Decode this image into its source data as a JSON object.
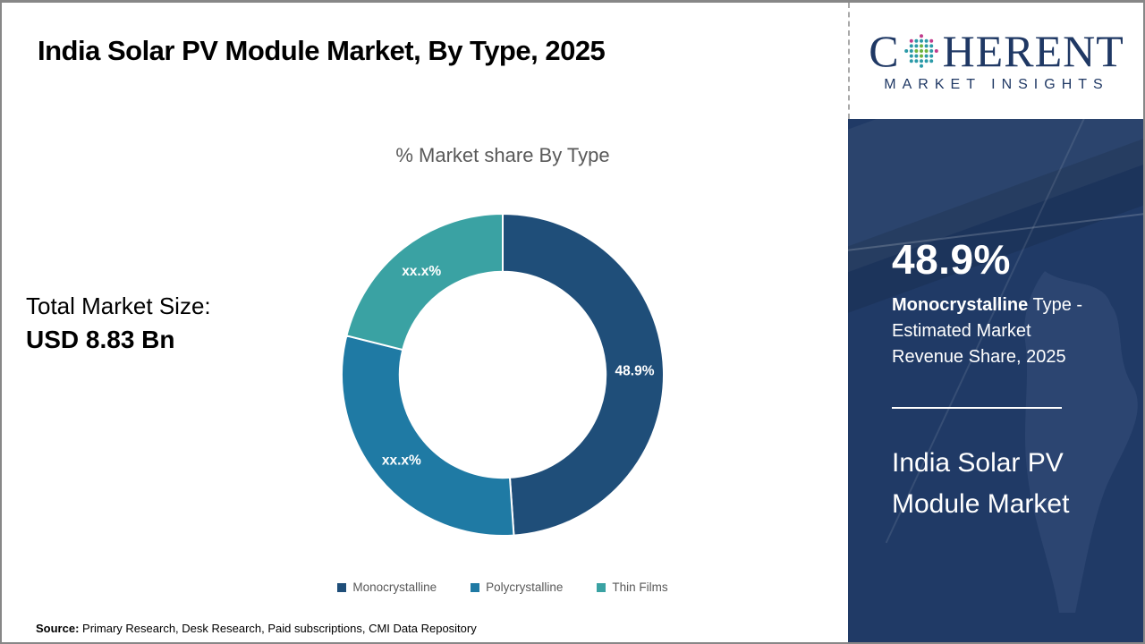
{
  "theme": {
    "border_gray": "#878787",
    "navy_panel": "#203a66",
    "logo_navy": "#1f3864",
    "muted_gray": "#595959",
    "white": "#ffffff"
  },
  "header": {
    "title": "India Solar PV Module Market, By Type, 2025"
  },
  "logo": {
    "text_c": "C",
    "text_rest": "HERENT",
    "subtitle": "MARKET INSIGHTS",
    "globe_colors": {
      "green": "#6cb33f",
      "teal": "#2b9aa8",
      "magenta": "#c13c8c"
    }
  },
  "left_stat": {
    "label": "Total Market Size:",
    "value": "USD 8.83 Bn"
  },
  "sidebar": {
    "stat_value": "48.9%",
    "stat_bold": "Monocrystalline",
    "stat_rest": " Type - Estimated Market Revenue Share, 2025",
    "market_line1": "India Solar PV",
    "market_line2": "Module Market"
  },
  "footer": {
    "source_label": "Source:",
    "source_text": " Primary Research, Desk Research, Paid subscriptions, CMI Data Repository"
  },
  "chart_data": {
    "type": "pie",
    "subtype": "donut",
    "title": "% Market share By Type",
    "start_angle_deg": 0,
    "inner_radius_ratio": 0.64,
    "legend_position": "bottom",
    "slices": [
      {
        "name": "Monocrystalline",
        "value": 48.9,
        "label": "48.9%",
        "color": "#1f4e79"
      },
      {
        "name": "Polycrystalline",
        "value": 30.0,
        "label": "xx.x%",
        "color": "#1f7aa4"
      },
      {
        "name": "Thin Films",
        "value": 21.1,
        "label": "xx.x%",
        "color": "#3aa2a3"
      }
    ]
  }
}
